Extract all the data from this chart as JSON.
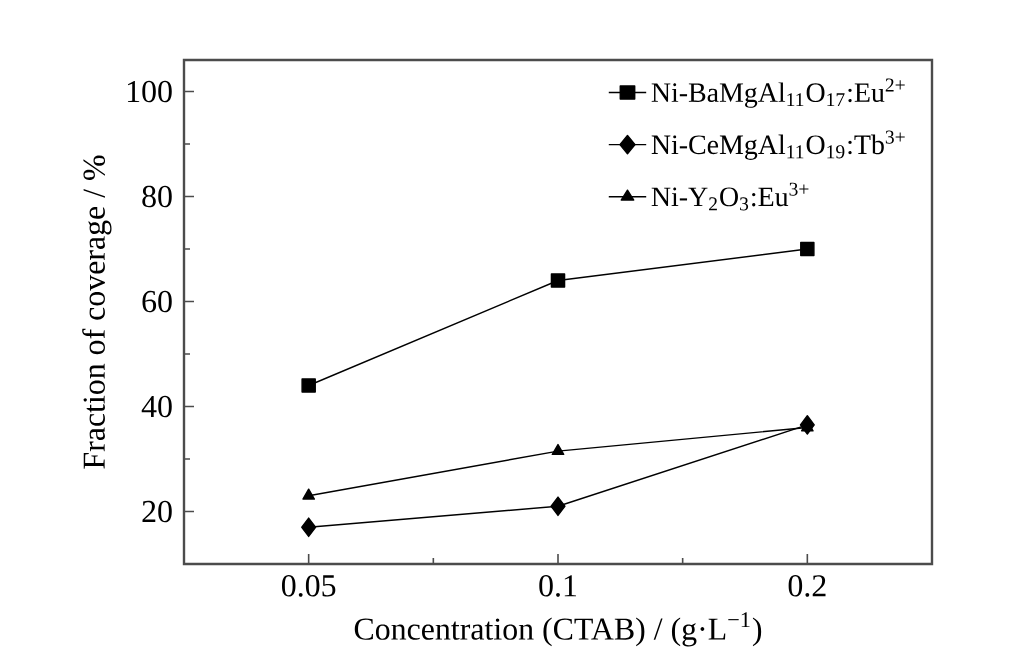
{
  "chart_data": {
    "type": "line",
    "xlabel": "Concentration (CTAB) / (g·L$^{−1}$)",
    "ylabel": "Fraction of coverage / %",
    "categories": [
      "0.05",
      "0.1",
      "0.2"
    ],
    "series": [
      {
        "name": "Ni-BaMgAl$_{11}$O$_{17}$:Eu$^{2+}$",
        "color": "#000000",
        "marker": "square",
        "values": [
          44,
          64,
          70
        ]
      },
      {
        "name": "Ni-CeMgAl$_{11}$O$_{19}$:Tb$^{3+}$",
        "color": "#000000",
        "marker": "diamond",
        "values": [
          17,
          21,
          36.5
        ]
      },
      {
        "name": "Ni-Y$_{2}$O$_{3}$:Eu$^{3+}$",
        "color": "#000000",
        "marker": "triangle",
        "values": [
          23,
          31.5,
          36
        ]
      }
    ],
    "ylim": [
      10,
      106
    ],
    "yticks": [
      20,
      40,
      60,
      80,
      100
    ],
    "grid": false,
    "legend": "top right",
    "line_style": "solid"
  }
}
